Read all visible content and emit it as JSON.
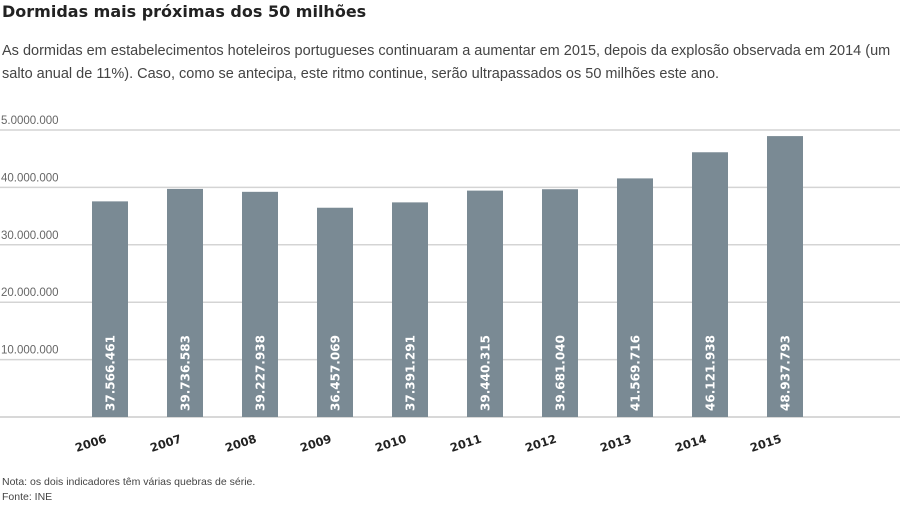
{
  "title": "Dormidas mais próximas dos 50 milhões",
  "subtitle": "As dormidas em estabelecimentos hoteleiros portugueses continuaram a aumentar em 2015, depois da explosão observada em 2014 (um salto anual de 11%). Caso, como se antecipa, este ritmo continue, serão ultrapassados os 50 milhões este ano.",
  "note": "Nota: os dois indicadores têm várias quebras de série.",
  "source": "Fonte: INE",
  "chart_data": {
    "type": "bar",
    "categories": [
      "2006",
      "2007",
      "2008",
      "2009",
      "2010",
      "2011",
      "2012",
      "2013",
      "2014",
      "2015"
    ],
    "values": [
      37566461,
      39736583,
      39227938,
      36457069,
      37391291,
      39440315,
      39681040,
      41569716,
      46121938,
      48937793
    ],
    "data_labels": [
      "37.566.461",
      "39.736.583",
      "39.227.938",
      "36.457.069",
      "37.391.291",
      "39.440.315",
      "39.681.040",
      "41.569.716",
      "46.121.938",
      "48.937.793"
    ],
    "yticks": [
      10000000,
      20000000,
      30000000,
      40000000,
      50000000
    ],
    "ytick_labels": [
      "10.000.000",
      "20.000.000",
      "30.000.000",
      "40.000.000",
      "5.0000.000"
    ],
    "ylim": [
      0,
      50000000
    ],
    "grid": true,
    "bar_color": "#7a8a94"
  }
}
